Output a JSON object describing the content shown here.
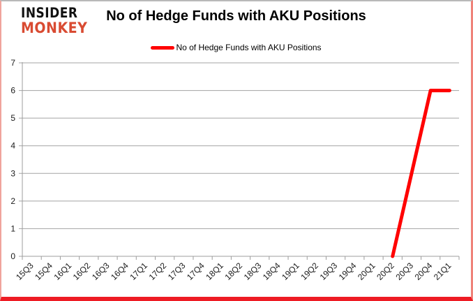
{
  "branding": {
    "line1": "INSIDER",
    "line2": "MONKEY"
  },
  "title": "No of Hedge Funds with AKU Positions",
  "legend": {
    "label": "No of Hedge Funds with AKU Positions"
  },
  "colors": {
    "series": "#ff0000",
    "grid": "#a3a3a3",
    "axis": "#9c9c9c",
    "tick_text": "#1a1a1a",
    "logo_black": "#111111",
    "logo_red": "#d94b32",
    "border_bottom_red": "#ee1c24"
  },
  "chart_data": {
    "type": "line",
    "title": "No of Hedge Funds with AKU Positions",
    "xlabel": "",
    "ylabel": "",
    "categories": [
      "15Q3",
      "15Q4",
      "16Q1",
      "16Q2",
      "16Q3",
      "16Q4",
      "17Q1",
      "17Q2",
      "17Q3",
      "17Q4",
      "18Q1",
      "18Q2",
      "18Q3",
      "18Q4",
      "19Q1",
      "19Q2",
      "19Q3",
      "19Q4",
      "20Q1",
      "20Q2",
      "20Q3",
      "20Q4",
      "21Q1"
    ],
    "series": [
      {
        "name": "No of Hedge Funds with AKU Positions",
        "color": "#ff0000",
        "values": [
          null,
          null,
          null,
          null,
          null,
          null,
          null,
          null,
          null,
          null,
          null,
          null,
          null,
          null,
          null,
          null,
          null,
          null,
          null,
          0,
          3,
          6,
          6
        ]
      }
    ],
    "ylim": [
      0,
      7
    ],
    "yticks": [
      0,
      1,
      2,
      3,
      4,
      5,
      6,
      7
    ],
    "grid": "horizontal",
    "legend_position": "top-center"
  }
}
